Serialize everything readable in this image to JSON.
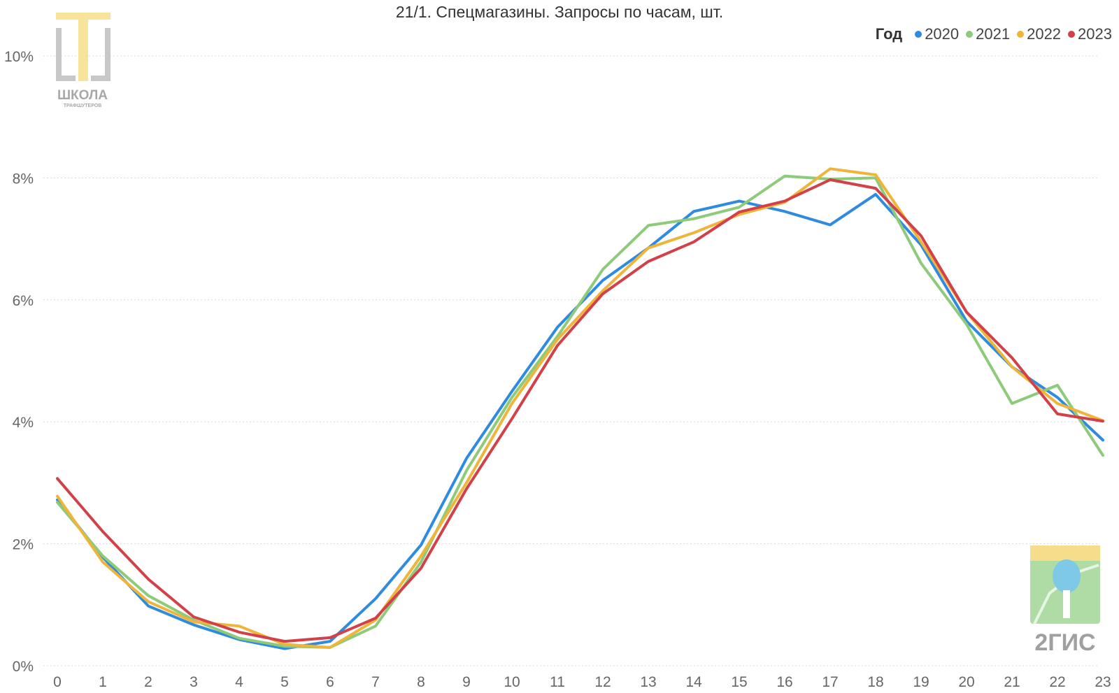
{
  "chart_data": {
    "type": "line",
    "title": "21/1. Спецмагазины. Запросы по часам, шт.",
    "xlabel": "",
    "ylabel": "",
    "x": [
      0,
      1,
      2,
      3,
      4,
      5,
      6,
      7,
      8,
      9,
      10,
      11,
      12,
      13,
      14,
      15,
      16,
      17,
      18,
      19,
      20,
      21,
      22,
      23
    ],
    "x_tick_labels": [
      "0",
      "1",
      "2",
      "3",
      "4",
      "5",
      "6",
      "7",
      "8",
      "9",
      "10",
      "11",
      "12",
      "13",
      "14",
      "15",
      "16",
      "17",
      "18",
      "19",
      "20",
      "21",
      "22",
      "23"
    ],
    "ylim": [
      0,
      10
    ],
    "y_ticks": [
      0,
      2,
      4,
      6,
      8,
      10
    ],
    "y_tick_labels": [
      "0%",
      "2%",
      "4%",
      "6%",
      "8%",
      "10%"
    ],
    "grid": true,
    "legend": {
      "title": "Год",
      "placement": "top-right"
    },
    "series": [
      {
        "name": "2020",
        "color": "#2e8be0",
        "values": [
          2.72,
          1.78,
          0.98,
          0.67,
          0.43,
          0.28,
          0.4,
          1.1,
          1.98,
          3.4,
          4.5,
          5.55,
          6.32,
          6.85,
          7.45,
          7.62,
          7.45,
          7.23,
          7.73,
          6.9,
          5.65,
          4.9,
          4.4,
          3.7
        ]
      },
      {
        "name": "2021",
        "color": "#8dca7a",
        "values": [
          2.68,
          1.8,
          1.15,
          0.75,
          0.45,
          0.32,
          0.3,
          0.65,
          1.7,
          3.2,
          4.4,
          5.4,
          6.5,
          7.22,
          7.33,
          7.52,
          8.03,
          7.98,
          8.0,
          6.6,
          5.6,
          4.3,
          4.6,
          3.45
        ]
      },
      {
        "name": "2022",
        "color": "#efb43a",
        "values": [
          2.78,
          1.7,
          1.05,
          0.72,
          0.65,
          0.35,
          0.3,
          0.75,
          1.8,
          3.0,
          4.3,
          5.35,
          6.15,
          6.85,
          7.1,
          7.4,
          7.6,
          8.15,
          8.05,
          6.95,
          5.8,
          4.9,
          4.3,
          4.02
        ]
      },
      {
        "name": "2023",
        "color": "#d24149",
        "values": [
          3.07,
          2.2,
          1.42,
          0.8,
          0.55,
          0.4,
          0.46,
          0.78,
          1.6,
          2.9,
          4.05,
          5.25,
          6.1,
          6.63,
          6.95,
          7.44,
          7.62,
          7.97,
          7.83,
          7.05,
          5.8,
          5.05,
          4.13,
          4.01
        ]
      }
    ]
  },
  "logos": {
    "school": {
      "text": "ШКОЛА",
      "subtext": "ТРАФШУТЕРОВ",
      "accent": "#f7de8a",
      "grey": "#c8c8c8"
    },
    "gis": {
      "text": "2ГИС",
      "green": "#a6d89a",
      "yellow": "#f5dd8c",
      "blue": "#7ec8e8"
    }
  }
}
